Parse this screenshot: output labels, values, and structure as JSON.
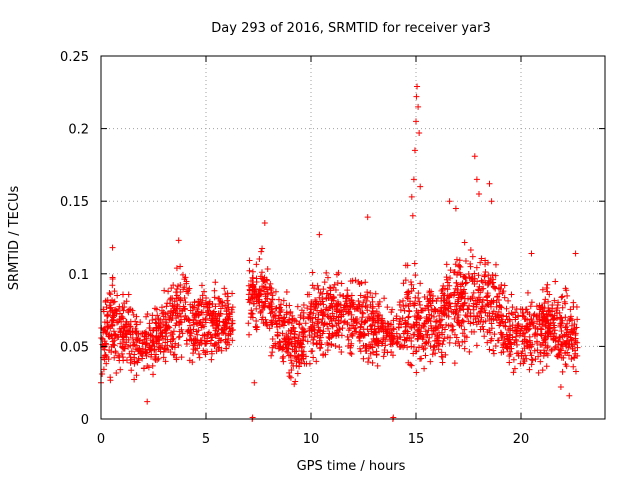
{
  "chart_data": {
    "type": "scatter",
    "title": "Day 293 of 2016, SRMTID for receiver yar3",
    "xlabel": "GPS time / hours",
    "ylabel": "SRMTID / TECUs",
    "xlim": [
      0,
      24
    ],
    "ylim": [
      0,
      0.25
    ],
    "xticks": [
      0,
      5,
      10,
      15,
      20
    ],
    "xtick_labels": [
      "0",
      "5",
      "10",
      "15",
      "20"
    ],
    "yticks": [
      0,
      0.05,
      0.1,
      0.15,
      0.2,
      0.25
    ],
    "ytick_labels": [
      "0",
      "0.05",
      "0.1",
      "0.15",
      "0.2",
      "0.25"
    ],
    "grid": true,
    "marker": "+",
    "color": "#ff0000",
    "envelope": [
      {
        "x": 0.0,
        "base": 0.055,
        "spread": 0.025
      },
      {
        "x": 0.5,
        "base": 0.065,
        "spread": 0.03
      },
      {
        "x": 1.0,
        "base": 0.058,
        "spread": 0.025
      },
      {
        "x": 2.0,
        "base": 0.05,
        "spread": 0.022
      },
      {
        "x": 3.0,
        "base": 0.06,
        "spread": 0.025
      },
      {
        "x": 3.7,
        "base": 0.075,
        "spread": 0.03
      },
      {
        "x": 4.5,
        "base": 0.065,
        "spread": 0.025
      },
      {
        "x": 5.5,
        "base": 0.068,
        "spread": 0.025
      },
      {
        "x": 6.1,
        "base": 0.065,
        "spread": 0.02
      },
      {
        "x": 7.1,
        "base": 0.085,
        "spread": 0.025
      },
      {
        "x": 7.7,
        "base": 0.085,
        "spread": 0.03
      },
      {
        "x": 8.5,
        "base": 0.065,
        "spread": 0.025
      },
      {
        "x": 9.3,
        "base": 0.05,
        "spread": 0.025
      },
      {
        "x": 10.0,
        "base": 0.07,
        "spread": 0.03
      },
      {
        "x": 11.0,
        "base": 0.07,
        "spread": 0.025
      },
      {
        "x": 12.0,
        "base": 0.072,
        "spread": 0.028
      },
      {
        "x": 13.0,
        "base": 0.065,
        "spread": 0.025
      },
      {
        "x": 14.0,
        "base": 0.06,
        "spread": 0.025
      },
      {
        "x": 14.8,
        "base": 0.075,
        "spread": 0.035
      },
      {
        "x": 15.5,
        "base": 0.06,
        "spread": 0.025
      },
      {
        "x": 16.5,
        "base": 0.075,
        "spread": 0.03
      },
      {
        "x": 17.5,
        "base": 0.085,
        "spread": 0.035
      },
      {
        "x": 18.5,
        "base": 0.08,
        "spread": 0.035
      },
      {
        "x": 19.5,
        "base": 0.058,
        "spread": 0.022
      },
      {
        "x": 20.5,
        "base": 0.06,
        "spread": 0.025
      },
      {
        "x": 21.5,
        "base": 0.065,
        "spread": 0.028
      },
      {
        "x": 22.7,
        "base": 0.055,
        "spread": 0.025
      }
    ],
    "gaps": [
      [
        6.3,
        7.0
      ],
      [
        13.95,
        14.05
      ]
    ],
    "point_count": 2600,
    "peaks": [
      {
        "x": 14.8,
        "y": 0.153
      },
      {
        "x": 14.9,
        "y": 0.165
      },
      {
        "x": 14.95,
        "y": 0.185
      },
      {
        "x": 15.0,
        "y": 0.205
      },
      {
        "x": 15.02,
        "y": 0.222
      },
      {
        "x": 15.05,
        "y": 0.229
      },
      {
        "x": 15.1,
        "y": 0.215
      },
      {
        "x": 15.15,
        "y": 0.197
      },
      {
        "x": 14.85,
        "y": 0.14
      },
      {
        "x": 15.2,
        "y": 0.16
      },
      {
        "x": 17.8,
        "y": 0.181
      },
      {
        "x": 17.9,
        "y": 0.165
      },
      {
        "x": 18.0,
        "y": 0.155
      },
      {
        "x": 18.5,
        "y": 0.162
      },
      {
        "x": 18.6,
        "y": 0.15
      },
      {
        "x": 16.6,
        "y": 0.15
      },
      {
        "x": 16.9,
        "y": 0.145
      },
      {
        "x": 7.8,
        "y": 0.135
      },
      {
        "x": 10.4,
        "y": 0.127
      },
      {
        "x": 12.7,
        "y": 0.139
      },
      {
        "x": 3.7,
        "y": 0.123
      },
      {
        "x": 0.55,
        "y": 0.118
      },
      {
        "x": 20.5,
        "y": 0.114
      },
      {
        "x": 22.6,
        "y": 0.114
      }
    ],
    "lows": [
      {
        "x": 2.2,
        "y": 0.012
      },
      {
        "x": 7.3,
        "y": 0.025
      },
      {
        "x": 22.3,
        "y": 0.016
      },
      {
        "x": 21.9,
        "y": 0.022
      },
      {
        "x": 9.2,
        "y": 0.024
      },
      {
        "x": 0.0,
        "y": 0.025
      }
    ],
    "markers_on_axis": [
      {
        "x": 7.2,
        "y": 0.0
      },
      {
        "x": 13.9,
        "y": 0.0
      }
    ]
  }
}
